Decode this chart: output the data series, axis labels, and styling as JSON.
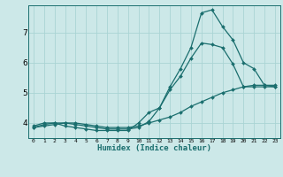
{
  "xlabel": "Humidex (Indice chaleur)",
  "bg_color": "#cce8e8",
  "grid_color": "#aad4d4",
  "line_color": "#1a6e6e",
  "markersize": 2.0,
  "linewidth": 0.9,
  "xlim": [
    -0.5,
    23.5
  ],
  "ylim": [
    3.5,
    7.9
  ],
  "yticks": [
    4,
    5,
    6,
    7
  ],
  "xticks": [
    0,
    1,
    2,
    3,
    4,
    5,
    6,
    7,
    8,
    9,
    10,
    11,
    12,
    13,
    14,
    15,
    16,
    17,
    18,
    19,
    20,
    21,
    22,
    23
  ],
  "line1_x": [
    0,
    1,
    2,
    3,
    4,
    5,
    6,
    7,
    8,
    9,
    10,
    11,
    12,
    13,
    14,
    15,
    16,
    17,
    18,
    19,
    20,
    21,
    22,
    23
  ],
  "line1_y": [
    3.9,
    4.0,
    4.0,
    3.9,
    3.85,
    3.8,
    3.75,
    3.75,
    3.75,
    3.75,
    4.0,
    4.35,
    4.5,
    5.1,
    5.55,
    6.15,
    6.65,
    6.6,
    6.5,
    5.95,
    5.2,
    5.2,
    5.2,
    5.2
  ],
  "line2_x": [
    0,
    1,
    2,
    3,
    4,
    5,
    6,
    7,
    8,
    9,
    10,
    11,
    12,
    13,
    14,
    15,
    16,
    17,
    18,
    19,
    20,
    21,
    22,
    23
  ],
  "line2_y": [
    3.85,
    3.95,
    4.0,
    4.0,
    3.95,
    3.9,
    3.85,
    3.8,
    3.8,
    3.8,
    3.85,
    4.05,
    4.5,
    5.2,
    5.8,
    6.5,
    7.65,
    7.75,
    7.2,
    6.75,
    6.0,
    5.8,
    5.25,
    5.2
  ],
  "line3_x": [
    0,
    1,
    2,
    3,
    4,
    5,
    6,
    7,
    8,
    9,
    10,
    11,
    12,
    13,
    14,
    15,
    16,
    17,
    18,
    19,
    20,
    21,
    22,
    23
  ],
  "line3_y": [
    3.85,
    3.9,
    3.95,
    4.0,
    4.0,
    3.95,
    3.9,
    3.85,
    3.85,
    3.85,
    3.9,
    4.0,
    4.1,
    4.2,
    4.35,
    4.55,
    4.7,
    4.85,
    5.0,
    5.1,
    5.2,
    5.25,
    5.25,
    5.25
  ]
}
